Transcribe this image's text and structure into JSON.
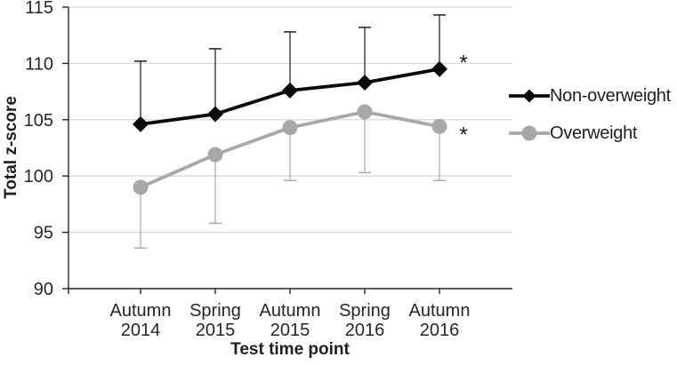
{
  "chart_data": {
    "type": "line",
    "title": "",
    "xlabel": "Test time point",
    "ylabel": "Total z-score",
    "ylim": [
      90,
      115
    ],
    "yticks": [
      90,
      95,
      100,
      105,
      110,
      115
    ],
    "categories": [
      [
        "Autumn",
        "2014"
      ],
      [
        "Spring",
        "2015"
      ],
      [
        "Autumn",
        "2015"
      ],
      [
        "Spring",
        "2016"
      ],
      [
        "Autumn",
        "2016"
      ]
    ],
    "series": [
      {
        "name": "Non-overweight",
        "marker": "diamond",
        "color": "#0a0a0a",
        "error_color": "#2b2b2b",
        "error_dir": "up",
        "values": [
          104.6,
          105.5,
          107.6,
          108.3,
          109.5
        ],
        "errors": [
          5.6,
          5.8,
          5.2,
          4.9,
          4.8
        ],
        "annotation": "*"
      },
      {
        "name": "Overweight",
        "marker": "circle",
        "color": "#a8a8a8",
        "error_color": "#adadad",
        "error_dir": "down",
        "values": [
          99.0,
          101.9,
          104.3,
          105.7,
          104.4
        ],
        "errors": [
          5.4,
          6.1,
          4.7,
          5.4,
          4.8
        ],
        "annotation": "*"
      }
    ],
    "legend_position": "right",
    "grid": true,
    "gridline_color": "#d9d9d9",
    "axis_color": "#262626",
    "text_color": "#262626",
    "annotation_color": "#1a1a1a"
  }
}
